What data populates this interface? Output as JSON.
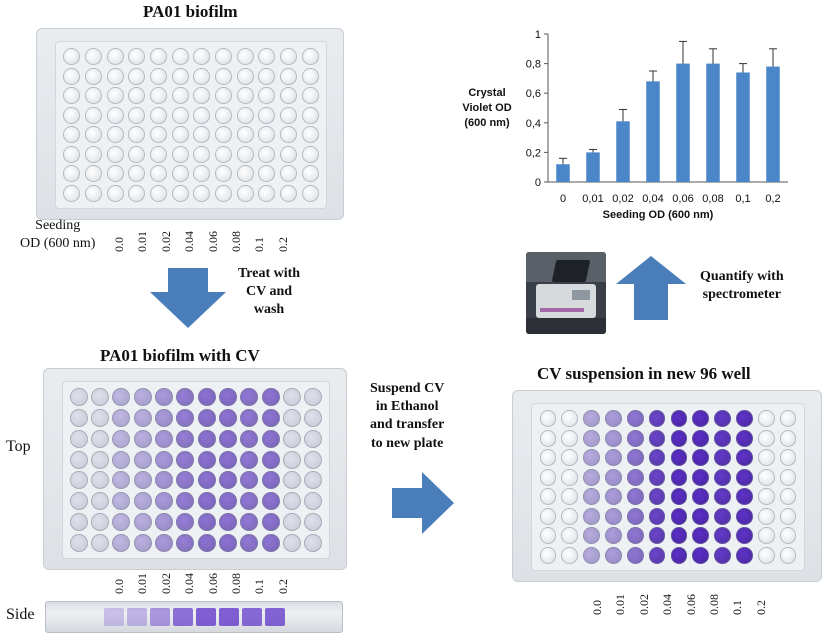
{
  "titles": {
    "plate1": "PA01 biofilm",
    "plate2": "PA01 biofilm with CV",
    "plate3": "CV suspension in new  96 well"
  },
  "seeding_label": {
    "line1": "Seeding",
    "line2": "OD (600 nm)"
  },
  "od_values": [
    "0.0",
    "0.01",
    "0.02",
    "0.04",
    "0.06",
    "0.08",
    "0.1",
    "0.2"
  ],
  "steps": {
    "treat": [
      "Treat with",
      "CV and",
      "wash"
    ],
    "quantify": [
      "Quantify with",
      "spectrometer"
    ],
    "suspend": [
      "Suspend CV",
      "in Ethanol",
      "and transfer",
      "to new plate"
    ]
  },
  "view_labels": {
    "top": "Top",
    "side": "Side"
  },
  "colors": {
    "arrow": "#4a7ebb",
    "bar": "#4a86c8",
    "cv_purple": "#5b2fc7"
  },
  "chart_data": {
    "type": "bar",
    "categories": [
      "0",
      "0,01",
      "0,02",
      "0,04",
      "0,06",
      "0,08",
      "0,1",
      "0,2"
    ],
    "values": [
      0.12,
      0.2,
      0.41,
      0.68,
      0.8,
      0.8,
      0.74,
      0.78
    ],
    "errors": [
      0.04,
      0.02,
      0.08,
      0.07,
      0.15,
      0.1,
      0.06,
      0.12
    ],
    "ylabel": "Crystal Violet OD (600 nm)",
    "ylabel_lines": [
      "Crystal",
      "Violet OD",
      "(600 nm)"
    ],
    "xlabel": "Seeding OD (600 nm)",
    "ylim": [
      0,
      1
    ],
    "yticks": [
      "0",
      "0,2",
      "0,4",
      "0,6",
      "0,8",
      "1"
    ],
    "grid": false
  }
}
